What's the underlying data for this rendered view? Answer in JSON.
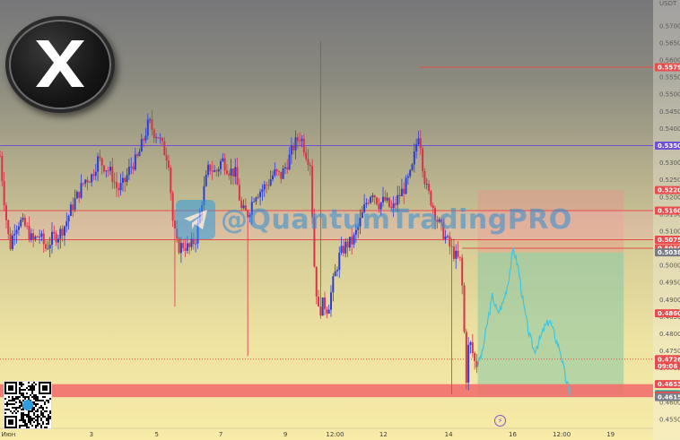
{
  "chart_data": {
    "type": "candlestick",
    "currency": "USDT",
    "y_axis": {
      "min": 0.455,
      "max": 0.5765,
      "ticks": [
        "0.5700",
        "0.5650",
        "0.5600",
        "0.5550",
        "0.5500",
        "0.5450",
        "0.5400",
        "0.5350",
        "0.5300",
        "0.5250",
        "0.5200",
        "0.5150",
        "0.5100",
        "0.5050",
        "0.5000",
        "0.4950",
        "0.4900",
        "0.4850",
        "0.4800",
        "0.4750",
        "0.4700",
        "0.4650",
        "0.4600",
        "0.4550"
      ]
    },
    "x_axis": {
      "ticks": [
        "Июн",
        "3",
        "5",
        "7",
        "9",
        "12:00",
        "12",
        "14",
        "16",
        "12:00",
        "19"
      ]
    },
    "levels": [
      {
        "value": 0.5579,
        "label": "0.5579",
        "color": "#e84c4c",
        "style": "solid",
        "from_fraction": 0.6418
      },
      {
        "value": 0.535,
        "label": "0.5350",
        "color": "#6e4fd8",
        "style": "solid",
        "from_fraction": 0
      },
      {
        "value": 0.522,
        "label": "0.5220",
        "color": "#e84c4c",
        "style": "label"
      },
      {
        "value": 0.516,
        "label": "0.5160",
        "color": "#e84c4c",
        "style": "solid",
        "from_fraction": 0
      },
      {
        "value": 0.5075,
        "label": "0.5075",
        "color": "#e84c4c",
        "style": "solid",
        "from_fraction": 0
      },
      {
        "value": 0.505,
        "label": "0.5050",
        "color": "#e84c4c",
        "style": "solid",
        "from_fraction": 0.7078
      },
      {
        "value": 0.5038,
        "label": "0.5038",
        "color": "#787b86",
        "style": "label"
      },
      {
        "value": 0.486,
        "label": "0.4860",
        "color": "#e84c4c",
        "style": "label"
      },
      {
        "value": 0.4726,
        "label": "0.4726",
        "sublabel": "09:06",
        "color": "#e84c4c",
        "style": "dotted",
        "from_fraction": 0
      },
      {
        "value": 0.4653,
        "label": "0.4653",
        "color": "#e84c4c",
        "style": "zone"
      },
      {
        "value": 0.4624,
        "label": "0.4624",
        "color": "#26a69a",
        "style": "label"
      },
      {
        "value": 0.462,
        "label": "0.4620",
        "color": "#e84c4c",
        "style": "label"
      },
      {
        "value": 0.4615,
        "label": "0.4615",
        "color": "#787b86",
        "style": "label"
      }
    ],
    "support_zone": {
      "from": 0.4615,
      "to": 0.4653,
      "color": "#f2706e"
    },
    "resistance_zone": {
      "from": 0.5075,
      "to": 0.516,
      "color": "#f2b4b4"
    },
    "position": {
      "entry": 0.5038,
      "target": 0.4615,
      "stop": 0.522,
      "from_fraction": 0.7315,
      "to_fraction": 0.955
    },
    "price_path": [
      [
        0.0,
        0.532
      ],
      [
        0.008,
        0.516
      ],
      [
        0.015,
        0.505
      ],
      [
        0.022,
        0.511
      ],
      [
        0.03,
        0.513
      ],
      [
        0.04,
        0.511
      ],
      [
        0.05,
        0.507
      ],
      [
        0.06,
        0.509
      ],
      [
        0.07,
        0.505
      ],
      [
        0.08,
        0.508
      ],
      [
        0.09,
        0.509
      ],
      [
        0.1,
        0.512
      ],
      [
        0.11,
        0.517
      ],
      [
        0.12,
        0.521
      ],
      [
        0.13,
        0.525
      ],
      [
        0.14,
        0.526
      ],
      [
        0.15,
        0.531
      ],
      [
        0.16,
        0.529
      ],
      [
        0.17,
        0.527
      ],
      [
        0.18,
        0.522
      ],
      [
        0.19,
        0.524
      ],
      [
        0.2,
        0.529
      ],
      [
        0.21,
        0.531
      ],
      [
        0.22,
        0.537
      ],
      [
        0.228,
        0.542
      ],
      [
        0.235,
        0.539
      ],
      [
        0.242,
        0.538
      ],
      [
        0.25,
        0.534
      ],
      [
        0.258,
        0.531
      ],
      [
        0.265,
        0.512
      ],
      [
        0.272,
        0.505
      ],
      [
        0.28,
        0.506
      ],
      [
        0.29,
        0.505
      ],
      [
        0.3,
        0.508
      ],
      [
        0.31,
        0.52
      ],
      [
        0.32,
        0.529
      ],
      [
        0.33,
        0.527
      ],
      [
        0.34,
        0.531
      ],
      [
        0.35,
        0.528
      ],
      [
        0.36,
        0.527
      ],
      [
        0.37,
        0.516
      ],
      [
        0.38,
        0.515
      ],
      [
        0.39,
        0.521
      ],
      [
        0.4,
        0.522
      ],
      [
        0.41,
        0.524
      ],
      [
        0.42,
        0.527
      ],
      [
        0.43,
        0.526
      ],
      [
        0.44,
        0.53
      ],
      [
        0.45,
        0.535
      ],
      [
        0.46,
        0.538
      ],
      [
        0.468,
        0.533
      ],
      [
        0.475,
        0.53
      ],
      [
        0.482,
        0.497
      ],
      [
        0.488,
        0.486
      ],
      [
        0.495,
        0.489
      ],
      [
        0.502,
        0.487
      ],
      [
        0.51,
        0.495
      ],
      [
        0.52,
        0.503
      ],
      [
        0.53,
        0.506
      ],
      [
        0.54,
        0.507
      ],
      [
        0.55,
        0.512
      ],
      [
        0.56,
        0.518
      ],
      [
        0.57,
        0.522
      ],
      [
        0.58,
        0.518
      ],
      [
        0.59,
        0.519
      ],
      [
        0.6,
        0.516
      ],
      [
        0.61,
        0.52
      ],
      [
        0.62,
        0.523
      ],
      [
        0.63,
        0.527
      ],
      [
        0.638,
        0.536
      ],
      [
        0.642,
        0.54
      ],
      [
        0.646,
        0.531
      ],
      [
        0.652,
        0.523
      ],
      [
        0.66,
        0.519
      ],
      [
        0.67,
        0.513
      ],
      [
        0.68,
        0.509
      ],
      [
        0.69,
        0.505
      ],
      [
        0.7,
        0.502
      ],
      [
        0.706,
        0.501
      ],
      [
        0.71,
        0.484
      ],
      [
        0.714,
        0.467
      ],
      [
        0.718,
        0.478
      ],
      [
        0.722,
        0.476
      ],
      [
        0.726,
        0.472
      ],
      [
        0.73,
        0.471
      ]
    ],
    "projection_path": [
      [
        0.731,
        0.471
      ],
      [
        0.738,
        0.474
      ],
      [
        0.746,
        0.483
      ],
      [
        0.754,
        0.491
      ],
      [
        0.762,
        0.486
      ],
      [
        0.77,
        0.489
      ],
      [
        0.778,
        0.495
      ],
      [
        0.786,
        0.505
      ],
      [
        0.794,
        0.499
      ],
      [
        0.802,
        0.488
      ],
      [
        0.81,
        0.48
      ],
      [
        0.818,
        0.475
      ],
      [
        0.826,
        0.478
      ],
      [
        0.834,
        0.482
      ],
      [
        0.842,
        0.484
      ],
      [
        0.85,
        0.479
      ],
      [
        0.858,
        0.475
      ],
      [
        0.866,
        0.467
      ],
      [
        0.874,
        0.462
      ]
    ],
    "watermark": "@QuantumTradingPRO"
  }
}
